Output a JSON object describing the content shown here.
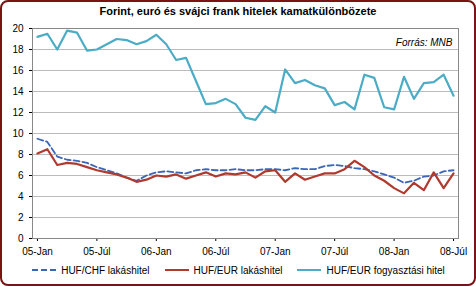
{
  "chart_data": {
    "type": "line",
    "title": "Forint, euró és svájci frank hitelek kamatkülönbözete",
    "annotations": [
      "Forrás: MNB"
    ],
    "categories": [
      "05-Jan",
      null,
      null,
      null,
      null,
      null,
      "05-Júl",
      null,
      null,
      null,
      null,
      null,
      "06-Jan",
      null,
      null,
      null,
      null,
      null,
      "06-Júl",
      null,
      null,
      null,
      null,
      null,
      "07-Jan",
      null,
      null,
      null,
      null,
      null,
      "07-Júl",
      null,
      null,
      null,
      null,
      null,
      "08-Jan",
      null,
      null,
      null,
      null,
      null,
      "08-Júl"
    ],
    "series": [
      {
        "name": "HUF/CHF lakáshitel",
        "color": "#3a66b8",
        "line_style": "dashed",
        "values": [
          9.5,
          9.2,
          7.8,
          7.5,
          7.4,
          7.2,
          6.8,
          6.5,
          6.2,
          5.8,
          5.5,
          6.0,
          6.3,
          6.4,
          6.3,
          6.2,
          6.5,
          6.6,
          6.5,
          6.5,
          6.6,
          6.5,
          6.5,
          6.6,
          6.6,
          6.5,
          6.7,
          6.6,
          6.6,
          6.9,
          7.0,
          6.9,
          6.7,
          6.6,
          6.4,
          6.1,
          5.8,
          5.3,
          5.5,
          5.9,
          6.0,
          6.4,
          6.5
        ]
      },
      {
        "name": "HUF/EUR lakáshitel",
        "color": "#b03a2e",
        "line_style": "solid",
        "values": [
          8.1,
          8.5,
          7.0,
          7.2,
          7.1,
          6.8,
          6.5,
          6.3,
          6.1,
          5.8,
          5.4,
          5.6,
          6.0,
          5.9,
          6.1,
          5.7,
          6.0,
          6.3,
          5.9,
          6.2,
          6.1,
          6.3,
          5.8,
          6.4,
          6.5,
          5.4,
          6.2,
          5.6,
          5.9,
          6.2,
          6.2,
          6.6,
          7.4,
          6.8,
          6.0,
          5.5,
          4.8,
          4.3,
          5.3,
          4.6,
          6.3,
          4.8,
          6.2
        ]
      },
      {
        "name": "HUF/EUR fogyasztási  hitel",
        "color": "#4bacc6",
        "line_style": "solid",
        "values": [
          19.2,
          19.5,
          18.0,
          19.8,
          19.6,
          17.9,
          18.0,
          18.5,
          19.0,
          18.9,
          18.5,
          18.8,
          19.4,
          18.5,
          17.0,
          17.2,
          15.0,
          12.8,
          12.9,
          13.3,
          12.8,
          11.5,
          11.3,
          12.6,
          12.0,
          16.1,
          14.8,
          15.1,
          14.6,
          14.3,
          12.7,
          13.0,
          12.3,
          15.6,
          15.3,
          12.5,
          12.3,
          15.4,
          13.3,
          14.8,
          14.9,
          15.6,
          13.6
        ]
      }
    ],
    "ylim": [
      0,
      20
    ],
    "yticks": [
      0,
      2,
      4,
      6,
      8,
      10,
      12,
      14,
      16,
      18,
      20
    ],
    "grid": true,
    "legend": "bottom"
  }
}
